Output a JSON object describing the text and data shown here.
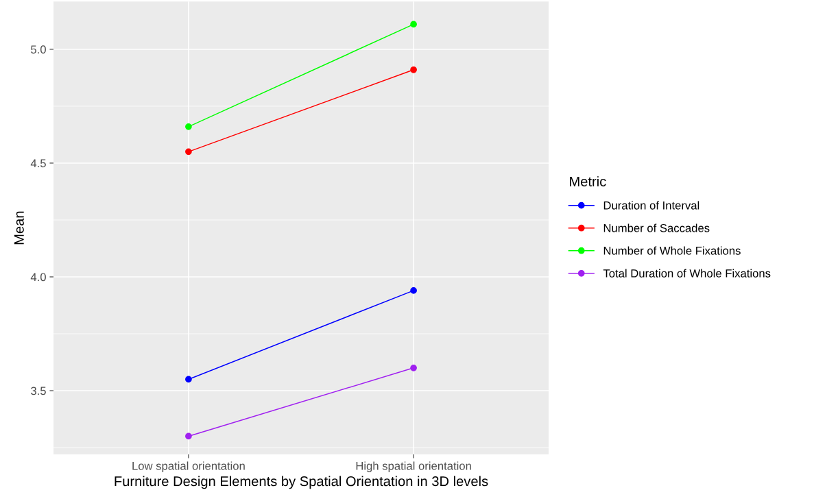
{
  "chart_data": {
    "type": "line",
    "xlabel": "Furniture Design Elements by Spatial Orientation in 3D levels",
    "ylabel": "Mean",
    "legend_title": "Metric",
    "categories": [
      "Low spatial orientation",
      "High spatial orientation"
    ],
    "series": [
      {
        "name": "Duration of Interval",
        "color": "#0000ff",
        "values": [
          3.55,
          3.94
        ]
      },
      {
        "name": "Number of Saccades",
        "color": "#ff0000",
        "values": [
          4.55,
          4.91
        ]
      },
      {
        "name": "Number of Whole Fixations",
        "color": "#00ff00",
        "values": [
          4.66,
          5.11
        ]
      },
      {
        "name": "Total Duration of Whole Fixations",
        "color": "#a020f0",
        "values": [
          3.3,
          3.6
        ]
      }
    ],
    "ylim": [
      3.22,
      5.21
    ],
    "yticks": [
      {
        "value": 3.5,
        "label": "3.5"
      },
      {
        "value": 4.0,
        "label": "4.0"
      },
      {
        "value": 4.5,
        "label": "4.5"
      },
      {
        "value": 5.0,
        "label": "5.0"
      }
    ],
    "grid": true,
    "legend": "right",
    "marker": "circle",
    "line_style": "solid"
  }
}
